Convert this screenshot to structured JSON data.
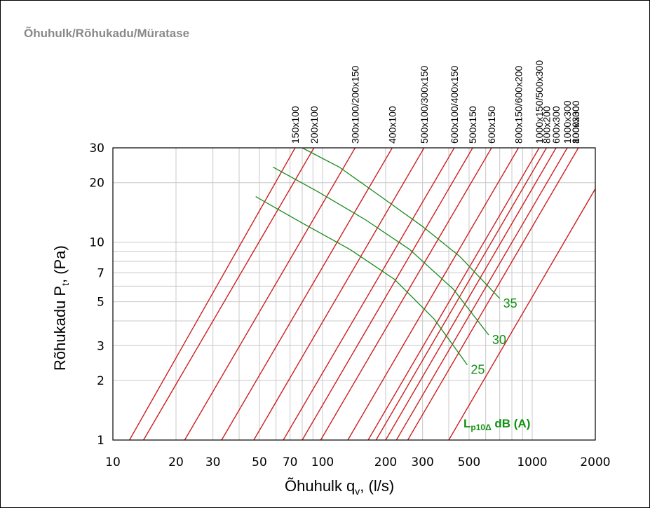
{
  "chart_data": {
    "type": "line",
    "title": "Õhuhulk/Rõhukadu/Müratase",
    "xlabel": "Õhuhulk q",
    "xlabel_sub": "v",
    "xlabel_tail": ", (l/s)",
    "ylabel": "Rõhukadu P",
    "ylabel_sub": "t",
    "ylabel_tail": ", (Pa)",
    "x_scale": "log",
    "y_scale": "log",
    "xlim": [
      10,
      2000
    ],
    "ylim": [
      1,
      30
    ],
    "grid": true,
    "x_ticks": [
      10,
      20,
      30,
      50,
      70,
      100,
      200,
      300,
      500,
      1000,
      2000
    ],
    "x_tick_labels": [
      "10",
      "20",
      "30",
      "50",
      "70",
      "100",
      "200",
      "300",
      "500",
      "1000",
      "2000"
    ],
    "y_ticks": [
      1,
      2,
      3,
      5,
      7,
      10,
      20,
      30
    ],
    "y_tick_labels": [
      "1",
      "2",
      "3",
      "5",
      "7",
      "10",
      "20",
      "30"
    ],
    "legend": {
      "main": "L",
      "sub": "p10Δ",
      "tail": " dB (A)"
    },
    "pressure_series": [
      {
        "name": "150x100",
        "points": [
          [
            12,
            1
          ],
          [
            74,
            30
          ]
        ]
      },
      {
        "name": "200x100",
        "points": [
          [
            14,
            1
          ],
          [
            91,
            30
          ]
        ]
      },
      {
        "name": "300x100/200x150",
        "points": [
          [
            22,
            1
          ],
          [
            143,
            30
          ]
        ]
      },
      {
        "name": "400x100",
        "points": [
          [
            33,
            1
          ],
          [
            215,
            30
          ]
        ]
      },
      {
        "name": "500x100/300x150",
        "points": [
          [
            47,
            1
          ],
          [
            305,
            30
          ]
        ]
      },
      {
        "name": "600x100/400x150",
        "points": [
          [
            65,
            1
          ],
          [
            425,
            30
          ]
        ]
      },
      {
        "name": "500x150",
        "points": [
          [
            80,
            1
          ],
          [
            520,
            30
          ]
        ]
      },
      {
        "name": "600x150",
        "points": [
          [
            98,
            1
          ],
          [
            640,
            30
          ]
        ]
      },
      {
        "name": "800x150/600x200",
        "points": [
          [
            132,
            1
          ],
          [
            860,
            30
          ]
        ]
      },
      {
        "name": "1000x150/500x300",
        "points": [
          [
            165,
            1
          ],
          [
            1080,
            30
          ]
        ]
      },
      {
        "name": "800x200",
        "points": [
          [
            180,
            1
          ],
          [
            1170,
            30
          ]
        ]
      },
      {
        "name": "600x300",
        "points": [
          [
            200,
            1
          ],
          [
            1300,
            30
          ]
        ]
      },
      {
        "name": "1000x300",
        "points": [
          [
            225,
            1
          ],
          [
            1470,
            30
          ]
        ]
      },
      {
        "name": "800x300",
        "points": [
          [
            255,
            1
          ],
          [
            1660,
            30
          ]
        ]
      },
      {
        "name": "1000x300",
        "points": [
          [
            400,
            1
          ],
          [
            2600,
            30
          ]
        ]
      }
    ],
    "noise_series": [
      {
        "name": "35",
        "points": [
          [
            80,
            30
          ],
          [
            120,
            24
          ],
          [
            190,
            17
          ],
          [
            300,
            12
          ],
          [
            450,
            8.5
          ],
          [
            700,
            5.2
          ]
        ]
      },
      {
        "name": "30",
        "points": [
          [
            58,
            24
          ],
          [
            95,
            18
          ],
          [
            160,
            13
          ],
          [
            260,
            9.2
          ],
          [
            420,
            5.8
          ],
          [
            620,
            3.4
          ]
        ]
      },
      {
        "name": "25",
        "points": [
          [
            48,
            17
          ],
          [
            80,
            12.5
          ],
          [
            135,
            9.2
          ],
          [
            220,
            6.5
          ],
          [
            340,
            4.1
          ],
          [
            490,
            2.4
          ]
        ]
      }
    ],
    "colors": {
      "pressure_line": "#cc1f1f",
      "noise_line": "#1a8a1a",
      "noise_label": "#119111",
      "grid": "#c8c8c8",
      "title": "#8a8a8a"
    }
  }
}
